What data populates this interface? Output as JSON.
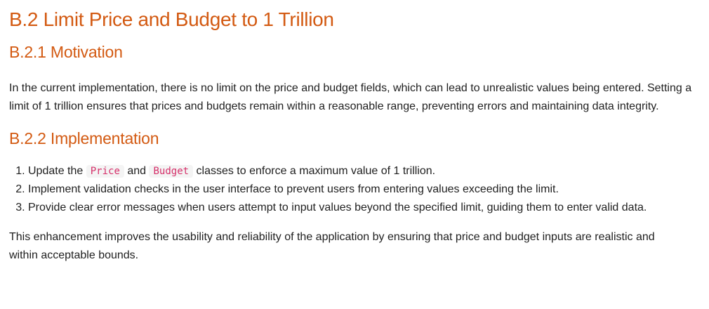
{
  "section": {
    "title": "B.2 Limit Price and Budget to 1 Trillion",
    "motivation": {
      "heading": "B.2.1 Motivation",
      "text": "In the current implementation, there is no limit on the price and budget fields, which can lead to unrealistic values being entered. Setting a limit of 1 trillion ensures that prices and budgets remain within a reasonable range, preventing errors and maintaining data integrity."
    },
    "implementation": {
      "heading": "B.2.2 Implementation",
      "items": [
        {
          "before": "Update the ",
          "code1": "Price",
          "middle": " and ",
          "code2": "Budget",
          "after": " classes to enforce a maximum value of 1 trillion."
        },
        {
          "text": "Implement validation checks in the user interface to prevent users from entering values exceeding the limit."
        },
        {
          "text": "Provide clear error messages when users attempt to input values beyond the specified limit, guiding them to enter valid data."
        }
      ]
    },
    "summary": "This enhancement improves the usability and reliability of the application by ensuring that price and budget inputs are realistic and within acceptable bounds."
  },
  "colors": {
    "heading": "#d35a12",
    "code_text": "#d6306a",
    "code_bg": "#f4f4f4",
    "body_text": "#1f1f1f"
  }
}
